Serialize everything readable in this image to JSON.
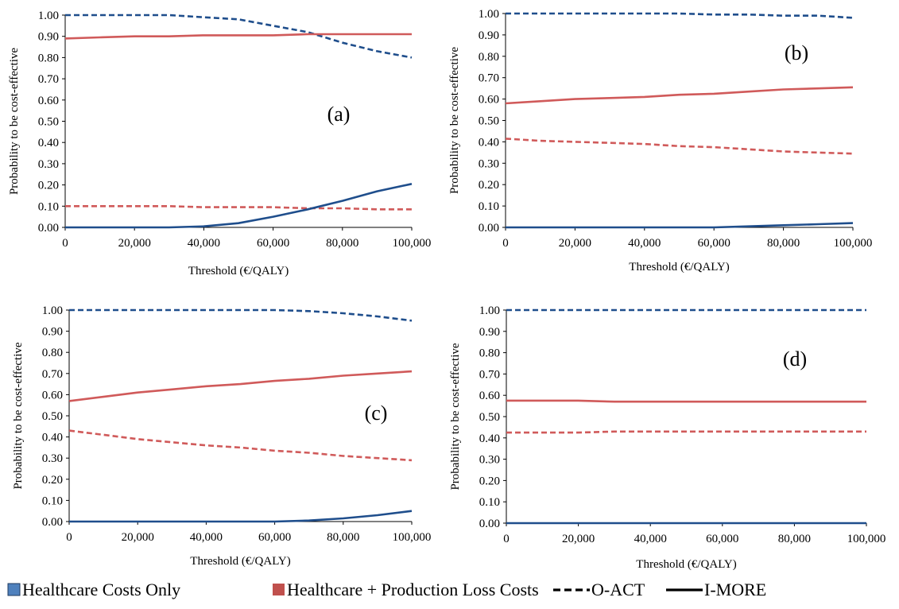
{
  "colors": {
    "blue": "#1f4e8c",
    "red": "#d05a5a",
    "blue_fill": "#4f81bd",
    "red_fill": "#c0504d"
  },
  "legend": [
    {
      "label": "Healthcare Costs Only",
      "kind": "swatch",
      "color": "#4f81bd"
    },
    {
      "label": "Healthcare + Production Loss Costs",
      "kind": "swatch",
      "color": "#c0504d"
    },
    {
      "label": "O-ACT",
      "kind": "dashed"
    },
    {
      "label": "I-MORE",
      "kind": "solid"
    }
  ],
  "chart_data": [
    {
      "type": "line",
      "panel_label": "(a)",
      "xlabel": "Threshold (€/QALY)",
      "ylabel": "Probability to be cost-effective",
      "xlim": [
        0,
        100000
      ],
      "ylim": [
        0,
        1
      ],
      "x_ticks": [
        "0",
        "20,000",
        "40,000",
        "60,000",
        "80,000",
        "100,000"
      ],
      "y_ticks": [
        "0.00",
        "0.10",
        "0.20",
        "0.30",
        "0.40",
        "0.50",
        "0.60",
        "0.70",
        "0.80",
        "0.90",
        "1.00"
      ],
      "x": [
        0,
        10000,
        20000,
        30000,
        40000,
        50000,
        60000,
        70000,
        80000,
        90000,
        100000
      ],
      "series": [
        {
          "color": "blue",
          "dash": true,
          "values": [
            1.0,
            1.0,
            1.0,
            1.0,
            0.99,
            0.98,
            0.95,
            0.92,
            0.87,
            0.83,
            0.8
          ]
        },
        {
          "color": "red",
          "dash": false,
          "values": [
            0.89,
            0.895,
            0.9,
            0.9,
            0.905,
            0.905,
            0.905,
            0.91,
            0.91,
            0.91,
            0.91
          ]
        },
        {
          "color": "red",
          "dash": true,
          "values": [
            0.1,
            0.1,
            0.1,
            0.1,
            0.095,
            0.095,
            0.095,
            0.09,
            0.09,
            0.085,
            0.085
          ]
        },
        {
          "color": "blue",
          "dash": false,
          "values": [
            0.0,
            0.0,
            0.0,
            0.0,
            0.005,
            0.02,
            0.05,
            0.085,
            0.125,
            0.17,
            0.205
          ]
        }
      ]
    },
    {
      "type": "line",
      "panel_label": "(b)",
      "xlabel": "Threshold (€/QALY)",
      "ylabel": "Probability to be cost-effective",
      "xlim": [
        0,
        100000
      ],
      "ylim": [
        0,
        1
      ],
      "x_ticks": [
        "0",
        "20,000",
        "40,000",
        "60,000",
        "80,000",
        "100,000"
      ],
      "y_ticks": [
        "0.00",
        "0.10",
        "0.20",
        "0.30",
        "0.40",
        "0.50",
        "0.60",
        "0.70",
        "0.80",
        "0.90",
        "1.00"
      ],
      "x": [
        0,
        10000,
        20000,
        30000,
        40000,
        50000,
        60000,
        70000,
        80000,
        90000,
        100000
      ],
      "series": [
        {
          "color": "blue",
          "dash": true,
          "values": [
            1.0,
            1.0,
            1.0,
            1.0,
            1.0,
            1.0,
            0.995,
            0.995,
            0.99,
            0.99,
            0.98
          ]
        },
        {
          "color": "red",
          "dash": false,
          "values": [
            0.58,
            0.59,
            0.6,
            0.605,
            0.61,
            0.62,
            0.625,
            0.635,
            0.645,
            0.65,
            0.655
          ]
        },
        {
          "color": "red",
          "dash": true,
          "values": [
            0.415,
            0.405,
            0.4,
            0.395,
            0.39,
            0.38,
            0.375,
            0.365,
            0.355,
            0.35,
            0.345
          ]
        },
        {
          "color": "blue",
          "dash": false,
          "values": [
            0.0,
            0.0,
            0.0,
            0.0,
            0.0,
            0.0,
            0.0,
            0.005,
            0.01,
            0.015,
            0.02
          ]
        }
      ]
    },
    {
      "type": "line",
      "panel_label": "(c)",
      "xlabel": "Threshold (€/QALY)",
      "ylabel": "Probability to be cost-effective",
      "xlim": [
        0,
        100000
      ],
      "ylim": [
        0,
        1
      ],
      "x_ticks": [
        "0",
        "20,000",
        "40,000",
        "60,000",
        "80,000",
        "100,000"
      ],
      "y_ticks": [
        "0.00",
        "0.10",
        "0.20",
        "0.30",
        "0.40",
        "0.50",
        "0.60",
        "0.70",
        "0.80",
        "0.90",
        "1.00"
      ],
      "x": [
        0,
        10000,
        20000,
        30000,
        40000,
        50000,
        60000,
        70000,
        80000,
        90000,
        100000
      ],
      "series": [
        {
          "color": "blue",
          "dash": true,
          "values": [
            1.0,
            1.0,
            1.0,
            1.0,
            1.0,
            1.0,
            1.0,
            0.995,
            0.985,
            0.97,
            0.95
          ]
        },
        {
          "color": "red",
          "dash": false,
          "values": [
            0.57,
            0.59,
            0.61,
            0.625,
            0.64,
            0.65,
            0.665,
            0.675,
            0.69,
            0.7,
            0.71
          ]
        },
        {
          "color": "red",
          "dash": true,
          "values": [
            0.43,
            0.41,
            0.39,
            0.375,
            0.36,
            0.35,
            0.335,
            0.325,
            0.31,
            0.3,
            0.29
          ]
        },
        {
          "color": "blue",
          "dash": false,
          "values": [
            0.0,
            0.0,
            0.0,
            0.0,
            0.0,
            0.0,
            0.0,
            0.005,
            0.015,
            0.03,
            0.05
          ]
        }
      ]
    },
    {
      "type": "line",
      "panel_label": "(d)",
      "xlabel": "Threshold (€/QALY)",
      "ylabel": "Probability to be cost-effective",
      "xlim": [
        0,
        100000
      ],
      "ylim": [
        0,
        1
      ],
      "x_ticks": [
        "0",
        "20,000",
        "40,000",
        "60,000",
        "80,000",
        "100,000"
      ],
      "y_ticks": [
        "0.00",
        "0.10",
        "0.20",
        "0.30",
        "0.40",
        "0.50",
        "0.60",
        "0.70",
        "0.80",
        "0.90",
        "1.00"
      ],
      "x": [
        0,
        10000,
        20000,
        30000,
        40000,
        50000,
        60000,
        70000,
        80000,
        90000,
        100000
      ],
      "series": [
        {
          "color": "blue",
          "dash": true,
          "values": [
            1.0,
            1.0,
            1.0,
            1.0,
            1.0,
            1.0,
            1.0,
            1.0,
            1.0,
            1.0,
            1.0
          ]
        },
        {
          "color": "red",
          "dash": false,
          "values": [
            0.575,
            0.575,
            0.575,
            0.57,
            0.57,
            0.57,
            0.57,
            0.57,
            0.57,
            0.57,
            0.57
          ]
        },
        {
          "color": "red",
          "dash": true,
          "values": [
            0.425,
            0.425,
            0.425,
            0.43,
            0.43,
            0.43,
            0.43,
            0.43,
            0.43,
            0.43,
            0.43
          ]
        },
        {
          "color": "blue",
          "dash": false,
          "values": [
            0.0,
            0.0,
            0.0,
            0.0,
            0.0,
            0.0,
            0.0,
            0.0,
            0.0,
            0.0,
            0.0
          ]
        }
      ]
    }
  ]
}
